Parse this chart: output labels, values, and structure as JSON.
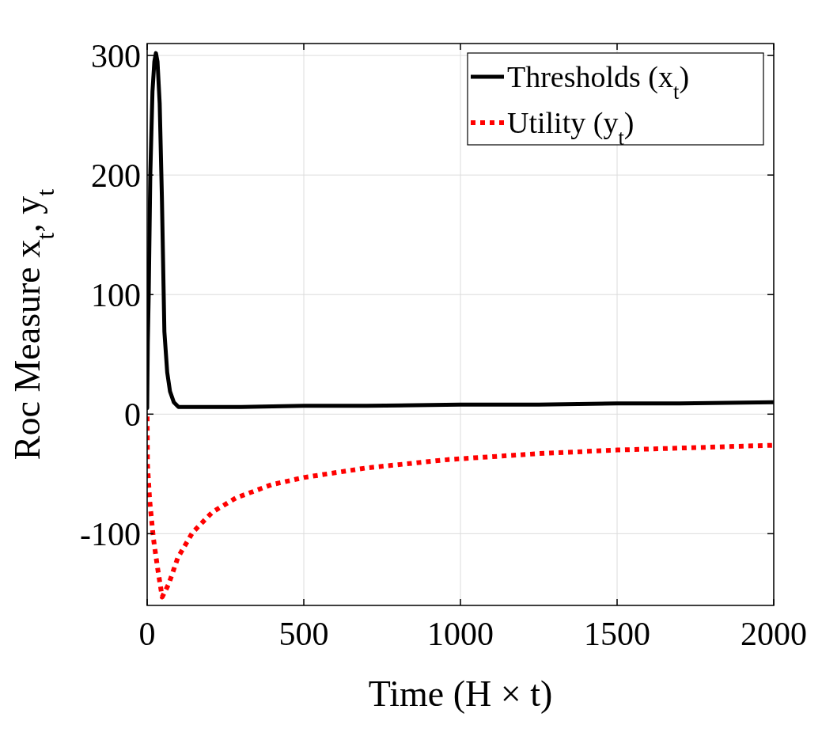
{
  "chart_data": {
    "type": "line",
    "xlabel": "Time (H × t)",
    "ylabel": "Roc Measure x$_{t}$, y$_{t}$",
    "xlim": [
      0,
      2000
    ],
    "ylim": [
      -160,
      310
    ],
    "xticks": [
      0,
      500,
      1000,
      1500,
      2000
    ],
    "yticks": [
      -100,
      0,
      100,
      200,
      300
    ],
    "grid": true,
    "legend": "top right",
    "series": [
      {
        "name": "Thresholds (x$_{t}$)",
        "color": "#000000",
        "line_style": "solid",
        "x": [
          0,
          2,
          5,
          10,
          17,
          23,
          28,
          33,
          40,
          47,
          55,
          64,
          73,
          85,
          100,
          150,
          200,
          300,
          500,
          700,
          1000,
          1250,
          1500,
          1700,
          2000
        ],
        "values": [
          5,
          60,
          100,
          200,
          270,
          295,
          302,
          295,
          260,
          182,
          69,
          35,
          19,
          10,
          6,
          6,
          6,
          6,
          7,
          7,
          8,
          8,
          9,
          9,
          10
        ]
      },
      {
        "name": "Utility (y$_{t}$)",
        "color": "#ff0000",
        "line_style": "dotted",
        "x": [
          0,
          1,
          8,
          20,
          34,
          48,
          69,
          98,
          145,
          208,
          284,
          397,
          500,
          700,
          961,
          1250,
          1500,
          2000
        ],
        "values": [
          -2,
          -42,
          -72,
          -104,
          -130,
          -153,
          -142,
          -120,
          -99,
          -82,
          -70,
          -59,
          -53,
          -45,
          -38,
          -33,
          -30,
          -26
        ]
      }
    ]
  }
}
